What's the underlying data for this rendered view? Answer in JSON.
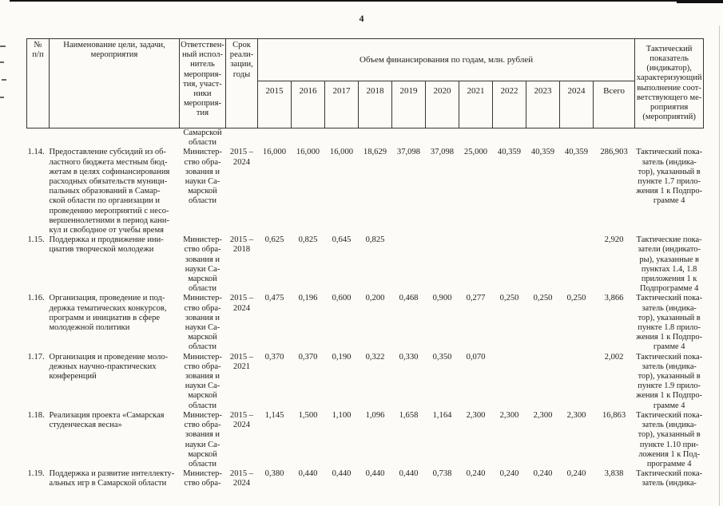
{
  "page": {
    "number": "4"
  },
  "table": {
    "header": {
      "num": "№\nп/п",
      "name": "Наименование цели, задачи,\nмероприятия",
      "executor": "Ответствен-\nный испол-\nнитель\nмероприя-\nтия, участ-\nники\nмероприя-\nтия",
      "period": "Срок\nреали-\nзации,\nгоды",
      "financing_group": "Объем финансирования по годам, млн. рублей",
      "years": [
        "2015",
        "2016",
        "2017",
        "2018",
        "2019",
        "2020",
        "2021",
        "2022",
        "2023",
        "2024"
      ],
      "total": "Всего",
      "indicator": "Тактический\nпоказатель\n(индикатор),\nхарактеризующий\nвыполнение соот-\nветствующего ме-\nроприятия\n(мероприятий)"
    },
    "rows": [
      {
        "num": "",
        "title": "",
        "executor": "Самарской\nобласти",
        "period": "",
        "values": [
          "",
          "",
          "",
          "",
          "",
          "",
          "",
          "",
          "",
          ""
        ],
        "total": "",
        "indicator": ""
      },
      {
        "num": "1.14.",
        "title": "Предоставление субсидий из об-\nластного бюджета местным бюд-\nжетам в целях софинансирования\nрасходных обязательств муници-\nпальных образований в Самар-\nской области по организации и\nпроведению мероприятий с несо-\nвершеннолетними в период кани-\nкул и свободное от учебы время",
        "executor": "Министер-\nство обра-\nзования и\nнауки Са-\nмарской\nобласти",
        "period": "2015 –\n2024",
        "values": [
          "16,000",
          "16,000",
          "16,000",
          "18,629",
          "37,098",
          "37,098",
          "25,000",
          "40,359",
          "40,359",
          "40,359"
        ],
        "total": "286,903",
        "indicator": "Тактический пока-\nзатель (индика-\nтор), указанный в\nпункте 1.7 прило-\nжения 1 к Подпро-\nграмме 4"
      },
      {
        "num": "1.15.",
        "title": "Поддержка и продвижение ини-\nциатив творческой молодежи",
        "executor": "Министер-\nство обра-\nзования и\nнауки Са-\nмарской\nобласти",
        "period": "2015 –\n2018",
        "values": [
          "0,625",
          "0,825",
          "0,645",
          "0,825",
          "",
          "",
          "",
          "",
          "",
          ""
        ],
        "total": "2,920",
        "indicator": "Тактические пока-\nзатели (индикато-\nры), указанные в\nпунктах 1.4, 1.8\nприложения 1 к\nПодпрограмме 4"
      },
      {
        "num": "1.16.",
        "title": "Организация, проведение и под-\nдержка тематических конкурсов,\nпрограмм и инициатив в сфере\nмолодежной политики",
        "executor": "Министер-\nство обра-\nзования и\nнауки Са-\nмарской\nобласти",
        "period": "2015 –\n2024",
        "values": [
          "0,475",
          "0,196",
          "0,600",
          "0,200",
          "0,468",
          "0,900",
          "0,277",
          "0,250",
          "0,250",
          "0,250"
        ],
        "total": "3,866",
        "indicator": "Тактический пока-\nзатель (индика-\nтор), указанный в\nпункте 1.8 прило-\nжения 1 к Подпро-\nграмме 4"
      },
      {
        "num": "1.17.",
        "title": "Организация и проведение моло-\nдежных научно-практических\nконференций",
        "executor": "Министер-\nство обра-\nзования и\nнауки Са-\nмарской\nобласти",
        "period": "2015 –\n2021",
        "values": [
          "0,370",
          "0,370",
          "0,190",
          "0,322",
          "0,330",
          "0,350",
          "0,070",
          "",
          "",
          ""
        ],
        "total": "2,002",
        "indicator": "Тактический пока-\nзатель (индика-\nтор), указанный в\nпункте 1.9 прило-\nжения 1 к Подпро-\nграмме 4"
      },
      {
        "num": "1.18.",
        "title": "Реализация проекта «Самарская\nстуденческая весна»",
        "executor": "Министер-\nство обра-\nзования и\nнауки Са-\nмарской\nобласти",
        "period": "2015 –\n2024",
        "values": [
          "1,145",
          "1,500",
          "1,100",
          "1,096",
          "1,658",
          "1,164",
          "2,300",
          "2,300",
          "2,300",
          "2,300"
        ],
        "total": "16,863",
        "indicator": "Тактический пока-\nзатель (индика-\nтор), указанный в\nпункте 1.10 при-\nложения 1 к Под-\nпрограмме 4"
      },
      {
        "num": "1.19.",
        "title": "Поддержка и развитие интеллекту-\nальных игр в Самарской области",
        "executor": "Министер-\nство обра-",
        "period": "2015 –\n2024",
        "values": [
          "0,380",
          "0,440",
          "0,440",
          "0,440",
          "0,440",
          "0,738",
          "0,240",
          "0,240",
          "0,240",
          "0,240"
        ],
        "total": "3,838",
        "indicator": "Тактический пока-\nзатель (индика-"
      }
    ]
  }
}
